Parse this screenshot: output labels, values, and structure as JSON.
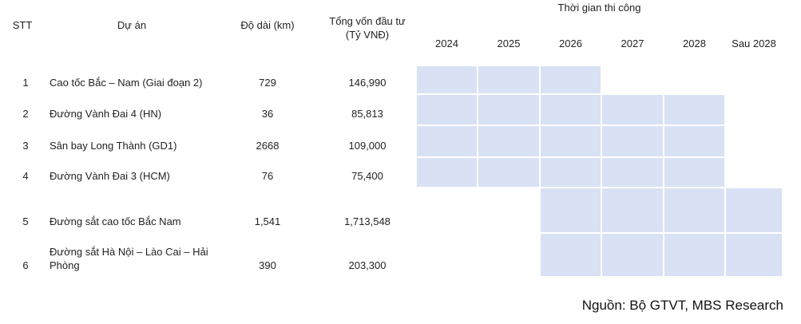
{
  "header": {
    "stt": "STT",
    "project": "Dự án",
    "length": "Độ dài (km)",
    "capital": "Tổng vốn đầu tư (Tỷ VNĐ)",
    "timeline": "Thời gian thi công",
    "years": [
      "2024",
      "2025",
      "2026",
      "2027",
      "2028",
      "Sau 2028"
    ]
  },
  "table": {
    "rows": [
      {
        "stt": "1",
        "project": "Cao tốc Bắc – Nam (Giai đoạn 2)",
        "length": "729",
        "capital": "146,990",
        "active": [
          true,
          true,
          true,
          false,
          false,
          false
        ]
      },
      {
        "stt": "2",
        "project": "Đường Vành Đai 4 (HN)",
        "length": "36",
        "capital": "85,813",
        "active": [
          true,
          true,
          true,
          true,
          true,
          false
        ]
      },
      {
        "stt": "3",
        "project": "Sân bay Long Thành (GD1)",
        "length": "2668",
        "capital": "109,000",
        "active": [
          true,
          true,
          true,
          true,
          true,
          false
        ]
      },
      {
        "stt": "4",
        "project": "Đường Vành Đai 3 (HCM)",
        "length": "76",
        "capital": "75,400",
        "active": [
          true,
          true,
          true,
          true,
          true,
          false
        ]
      },
      {
        "stt": "5",
        "project": "Đường sắt cao tốc Bắc Nam",
        "length": "1,541",
        "capital": "1,713,548",
        "active": [
          false,
          false,
          true,
          true,
          true,
          true
        ]
      },
      {
        "stt": "6",
        "project": "Đường sắt Hà Nội – Lào Cai – Hải Phòng",
        "length": "390",
        "capital": "203,300",
        "active": [
          false,
          false,
          true,
          true,
          true,
          true
        ]
      }
    ]
  },
  "source": "Nguồn: Bộ GTVT, MBS Research"
}
